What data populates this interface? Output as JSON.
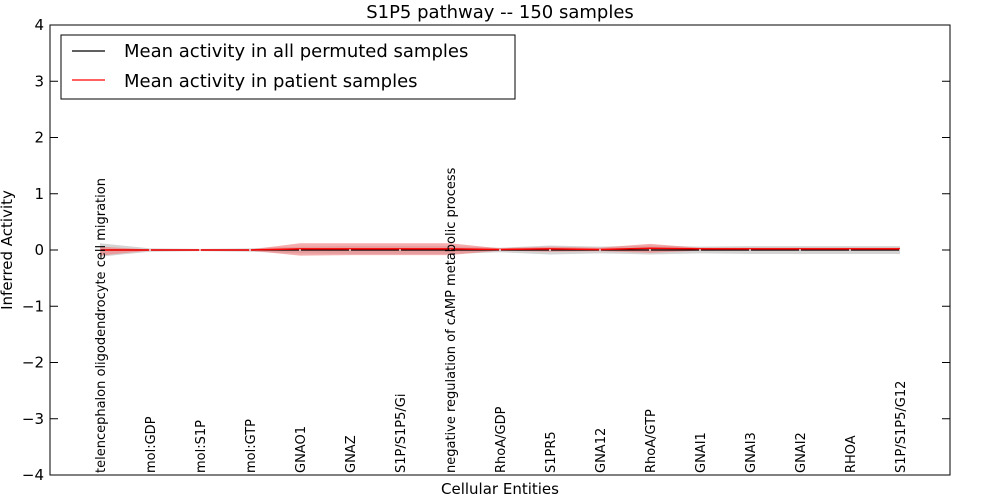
{
  "chart_data": {
    "type": "line",
    "title": "S1P5 pathway -- 150 samples",
    "xlabel": "Cellular Entities",
    "ylabel": "Inferred Activity",
    "ylim": [
      -4,
      4
    ],
    "yticks": [
      -4,
      -3,
      -2,
      -1,
      0,
      1,
      2,
      3,
      4
    ],
    "ytick_labels": [
      "−4",
      "−3",
      "−2",
      "−1",
      "0",
      "1",
      "2",
      "3",
      "4"
    ],
    "legend_position": "top-left",
    "categories": [
      "telencephalon oligodendrocyte cell migration",
      "mol:GDP",
      "mol:S1P",
      "mol:GTP",
      "GNAO1",
      "GNAZ",
      "S1P/S1P5/Gi",
      "negative regulation of cAMP metabolic process",
      "RhoA/GDP",
      "S1PR5",
      "GNA12",
      "RhoA/GTP",
      "GNAI1",
      "GNAI3",
      "GNAI2",
      "RHOA",
      "S1P/S1P5/G12"
    ],
    "series": [
      {
        "name": "Mean activity in all permuted samples",
        "color": "#000000",
        "band_color": "#b0b0b0",
        "values": [
          0.0,
          0.0,
          0.0,
          0.0,
          0.0,
          0.0,
          0.0,
          0.0,
          0.0,
          0.0,
          0.0,
          0.0,
          0.0,
          0.0,
          0.0,
          0.0,
          0.0
        ],
        "band_lower": [
          -0.12,
          -0.03,
          -0.02,
          -0.03,
          -0.06,
          -0.07,
          -0.07,
          -0.07,
          -0.04,
          -0.08,
          -0.06,
          -0.08,
          -0.06,
          -0.07,
          -0.07,
          -0.07,
          -0.07
        ],
        "band_upper": [
          0.12,
          0.03,
          0.02,
          0.03,
          0.06,
          0.07,
          0.07,
          0.07,
          0.04,
          0.08,
          0.06,
          0.08,
          0.06,
          0.07,
          0.07,
          0.07,
          0.07
        ]
      },
      {
        "name": "Mean activity in patient samples",
        "color": "#ff0000",
        "band_color": "#f08080",
        "values": [
          0.0,
          0.0,
          0.0,
          0.0,
          0.02,
          0.02,
          0.02,
          0.02,
          0.01,
          0.02,
          0.01,
          0.03,
          0.02,
          0.02,
          0.02,
          0.02,
          0.02
        ],
        "band_lower": [
          -0.1,
          -0.01,
          -0.01,
          -0.01,
          -0.1,
          -0.09,
          -0.09,
          -0.09,
          -0.01,
          -0.03,
          -0.02,
          -0.05,
          -0.01,
          -0.01,
          -0.01,
          -0.01,
          -0.01
        ],
        "band_upper": [
          0.06,
          0.01,
          0.01,
          0.01,
          0.12,
          0.12,
          0.12,
          0.12,
          0.03,
          0.06,
          0.04,
          0.11,
          0.04,
          0.04,
          0.04,
          0.04,
          0.04
        ]
      }
    ]
  }
}
